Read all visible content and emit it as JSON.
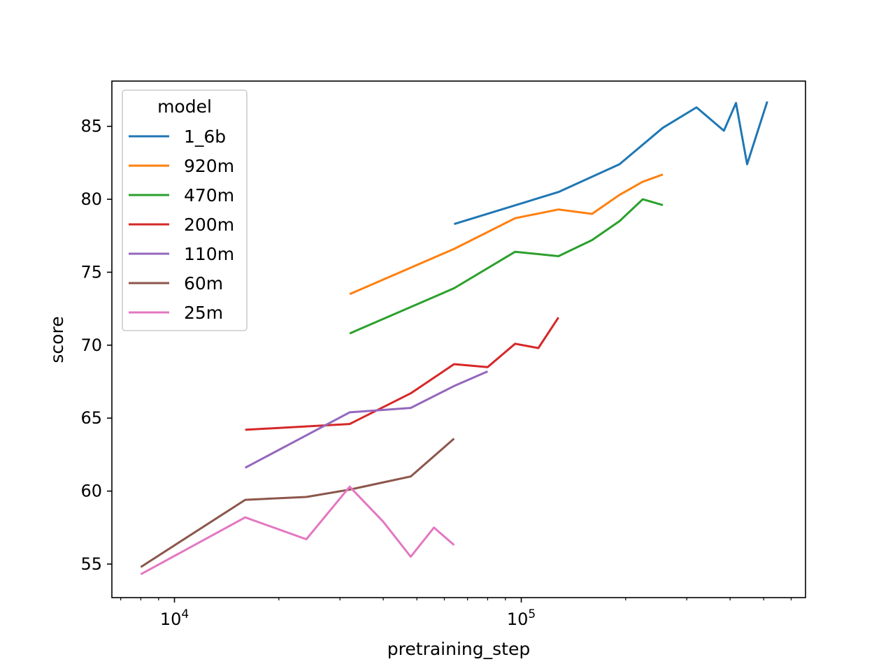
{
  "chart_data": {
    "type": "line",
    "title": "",
    "xlabel": "pretraining_step",
    "ylabel": "score",
    "xscale": "log",
    "xlim": [
      6600,
      660000
    ],
    "ylim": [
      52.7,
      88.1
    ],
    "x_ticks": [
      {
        "value": 10000,
        "base": "10",
        "exp": "4"
      },
      {
        "value": 100000,
        "base": "10",
        "exp": "5"
      }
    ],
    "y_ticks": [
      55,
      60,
      65,
      70,
      75,
      80,
      85
    ],
    "grid": false,
    "legend": {
      "title": "model",
      "position": "top-left"
    },
    "series": [
      {
        "name": "1_6b",
        "color": "#1f77b4",
        "x": [
          64000,
          128000,
          192000,
          256000,
          320000,
          384000,
          416000,
          448000,
          512000
        ],
        "y": [
          78.3,
          80.5,
          82.4,
          84.9,
          86.3,
          84.7,
          86.6,
          82.4,
          86.7
        ]
      },
      {
        "name": "920m",
        "color": "#ff7f0e",
        "x": [
          32000,
          64000,
          96000,
          128000,
          160000,
          192000,
          224000,
          256000
        ],
        "y": [
          73.5,
          76.6,
          78.7,
          79.3,
          79.0,
          80.3,
          81.2,
          81.7
        ]
      },
      {
        "name": "470m",
        "color": "#2ca02c",
        "x": [
          32000,
          64000,
          96000,
          128000,
          160000,
          192000,
          224000,
          256000
        ],
        "y": [
          70.8,
          73.9,
          76.4,
          76.1,
          77.2,
          78.5,
          80.0,
          79.6
        ]
      },
      {
        "name": "200m",
        "color": "#d62728",
        "x": [
          16000,
          32000,
          48000,
          64000,
          80000,
          96000,
          112000,
          128000
        ],
        "y": [
          64.2,
          64.6,
          66.7,
          68.7,
          68.5,
          70.1,
          69.8,
          71.9
        ]
      },
      {
        "name": "110m",
        "color": "#9467bd",
        "x": [
          16000,
          32000,
          48000,
          64000,
          80000
        ],
        "y": [
          61.6,
          65.4,
          65.7,
          67.2,
          68.2
        ]
      },
      {
        "name": "60m",
        "color": "#8c564b",
        "x": [
          8000,
          16000,
          24000,
          32000,
          40000,
          48000,
          64000
        ],
        "y": [
          54.8,
          59.4,
          59.6,
          60.1,
          60.6,
          61.0,
          63.6
        ]
      },
      {
        "name": "25m",
        "color": "#e377c2",
        "x": [
          8000,
          16000,
          24000,
          32000,
          40000,
          48000,
          56000,
          64000
        ],
        "y": [
          54.3,
          58.2,
          56.7,
          60.3,
          57.9,
          55.5,
          57.5,
          56.3
        ]
      }
    ]
  }
}
